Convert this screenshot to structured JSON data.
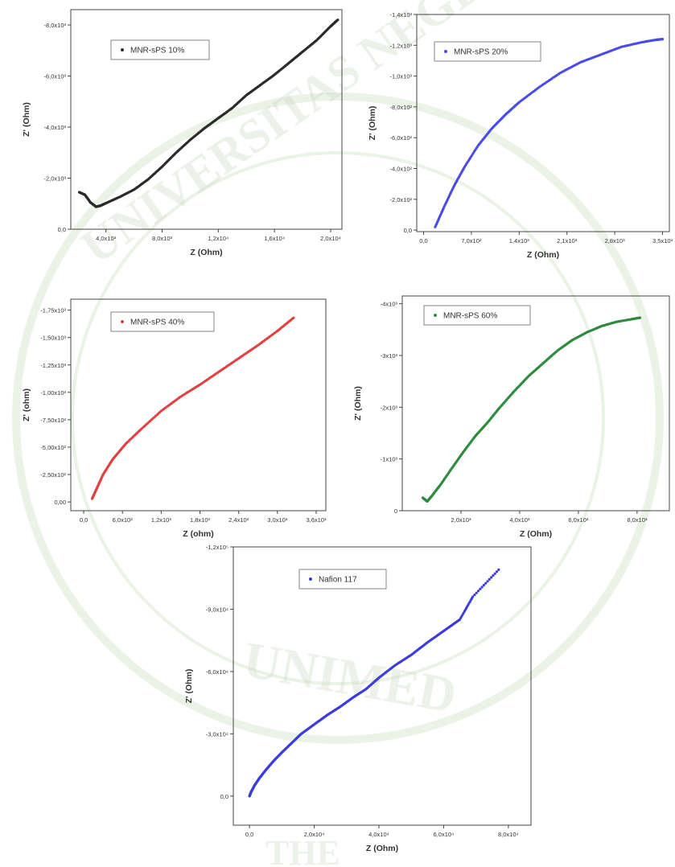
{
  "watermark": {
    "text": "UNIVERSITAS NEGERI",
    "bottom_text": "UNIMED",
    "footer_text": "THE"
  },
  "chart_data": [
    {
      "id": "p1",
      "type": "scatter",
      "color": "#2b2b2b",
      "legend": "MNR-sPS 10%",
      "xlabel": "Z (Ohm)",
      "ylabel": "Z' (Ohm)",
      "xlim": [
        1500,
        20800
      ],
      "ylim": [
        0,
        8600
      ],
      "xticks": [
        4000,
        8000,
        12000,
        16000,
        20000
      ],
      "xticklabels": [
        "4,0x10³",
        "8,0x10³",
        "1,2x10⁴",
        "1,6x10⁴",
        "2,0x10⁴"
      ],
      "yticks": [
        0,
        2000,
        4000,
        6000,
        8000
      ],
      "yticklabels": [
        "0,0",
        "-2,0x10³",
        "-4,0x10³",
        "-6,0x10³",
        "-8,0x10³"
      ],
      "x": [
        2100,
        2500,
        2900,
        3300,
        3600,
        4000,
        5000,
        6000,
        7000,
        8000,
        9000,
        10000,
        11000,
        12000,
        13000,
        14000,
        15000,
        16000,
        17000,
        18000,
        19000,
        20000,
        20500
      ],
      "y": [
        1450,
        1350,
        1050,
        880,
        920,
        1020,
        1270,
        1550,
        1950,
        2450,
        3000,
        3500,
        3950,
        4350,
        4750,
        5250,
        5650,
        6050,
        6500,
        6950,
        7400,
        7950,
        8200
      ]
    },
    {
      "id": "p2",
      "type": "scatter",
      "color": "#4a4ae6",
      "legend": "MNR-sPS 20%",
      "xlabel": "Z (Ohm)",
      "ylabel": "Z' (Ohm)",
      "xlim": [
        -100,
        3600
      ],
      "ylim": [
        -10,
        1400
      ],
      "xticks": [
        0,
        700,
        1400,
        2100,
        2800,
        3500
      ],
      "xticklabels": [
        "0,0",
        "7,0x10²",
        "1,4x10³",
        "2,1x10³",
        "2,8x10³",
        "3,5x10³"
      ],
      "yticks": [
        0,
        200,
        400,
        600,
        800,
        1000,
        1200,
        1400
      ],
      "yticklabels": [
        "0,0",
        "-2,0x10²",
        "-4,0x10²",
        "-6,0x10²",
        "-8,0x10²",
        "-1,0x10³",
        "-1,2x10³",
        "-1,4x10³"
      ],
      "x": [
        170,
        300,
        450,
        600,
        800,
        1000,
        1200,
        1400,
        1700,
        2000,
        2300,
        2600,
        2900,
        3200,
        3400,
        3500
      ],
      "y": [
        20,
        150,
        290,
        410,
        550,
        660,
        750,
        830,
        930,
        1020,
        1090,
        1140,
        1190,
        1220,
        1235,
        1240
      ]
    },
    {
      "id": "p3",
      "type": "scatter",
      "color": "#e04040",
      "legend": "MNR-sPS 40%",
      "xlabel": "Z (ohm)",
      "ylabel": "Z' (ohm)",
      "xlim": [
        -200,
        3750
      ],
      "ylim": [
        -80,
        1850
      ],
      "xticks": [
        0,
        600,
        1200,
        1800,
        2400,
        3000,
        3600
      ],
      "xticklabels": [
        "0,0",
        "6,0x10²",
        "1,2x10³",
        "1,8x10³",
        "2,4x10³",
        "3,0x10³",
        "3,6x10³"
      ],
      "yticks": [
        0,
        250,
        500,
        750,
        1000,
        1250,
        1500,
        1750
      ],
      "yticklabels": [
        "0,00",
        "-2,50x10²",
        "-5,00x10²",
        "-7,50x10²",
        "-1,00x10³",
        "-1,25x10³",
        "-1,50x10³",
        "-1,75x10³"
      ],
      "x": [
        130,
        200,
        300,
        450,
        650,
        900,
        1200,
        1500,
        1800,
        2100,
        2400,
        2700,
        3000,
        3250
      ],
      "y": [
        30,
        120,
        250,
        390,
        530,
        670,
        830,
        960,
        1070,
        1190,
        1310,
        1430,
        1560,
        1680
      ]
    },
    {
      "id": "p4",
      "type": "scatter",
      "color": "#2e8b3e",
      "legend": "MNR-sPS 60%",
      "xlabel": "Z (Ohm)",
      "ylabel": "Z' (Ohm)",
      "xlim": [
        0,
        9100
      ],
      "ylim": [
        0,
        4150
      ],
      "xticks": [
        2000,
        4000,
        6000,
        8000
      ],
      "xticklabels": [
        "2,0x10³",
        "4,0x10³",
        "6,0x10³",
        "8,0x10³"
      ],
      "yticks": [
        0,
        1000,
        2000,
        3000,
        4000
      ],
      "yticklabels": [
        "0",
        "-1x10³",
        "-2x10³",
        "-3x10³",
        "-4x10³"
      ],
      "x": [
        700,
        850,
        1000,
        1300,
        1700,
        2100,
        2500,
        2900,
        3300,
        3800,
        4300,
        4800,
        5300,
        5800,
        6300,
        6800,
        7300,
        7800,
        8100
      ],
      "y": [
        250,
        180,
        280,
        500,
        830,
        1150,
        1450,
        1700,
        1980,
        2300,
        2600,
        2850,
        3100,
        3300,
        3450,
        3570,
        3650,
        3700,
        3730
      ]
    },
    {
      "id": "p5",
      "type": "scatter",
      "color": "#3c3cdc",
      "legend": "Nafion 117",
      "xlabel": "Z (Ohm)",
      "ylabel": "Z' (Ohm)",
      "xlim": [
        -5000,
        87000
      ],
      "ylim": [
        -14000,
        120000
      ],
      "xticks": [
        0,
        20000,
        40000,
        60000,
        80000
      ],
      "xticklabels": [
        "0,0",
        "2,0x10⁴",
        "4,0x10⁴",
        "6,0x10⁴",
        "8,0x10⁴"
      ],
      "yticks": [
        0,
        30000,
        60000,
        90000,
        120000
      ],
      "yticklabels": [
        "0,0",
        "-3,0x10⁴",
        "-6,0x10⁴",
        "-9,0x10⁴",
        "-1,2x10⁵"
      ],
      "x": [
        0,
        500,
        1500,
        3000,
        5000,
        7500,
        10000,
        13000,
        16000,
        20000,
        24000,
        28000,
        32000,
        36000,
        40000,
        45000,
        50000,
        55000,
        60000,
        65000,
        69000,
        77000
      ],
      "y": [
        0,
        2000,
        5000,
        8500,
        12500,
        17000,
        21000,
        25500,
        30000,
        34500,
        39000,
        43000,
        47500,
        51500,
        57000,
        63000,
        68000,
        74000,
        79500,
        85000,
        96000,
        109000
      ]
    }
  ]
}
